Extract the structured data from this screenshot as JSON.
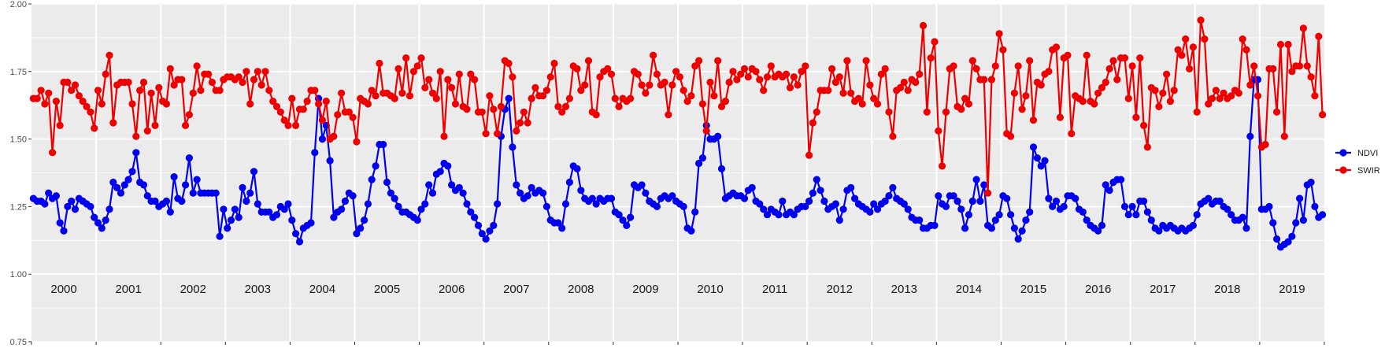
{
  "chart_data": {
    "type": "line",
    "ylim": [
      0.75,
      2.0
    ],
    "yticks": [
      "0.75",
      "1.00",
      "1.25",
      "1.50",
      "1.75",
      "2.00"
    ],
    "grid": true,
    "legend_position": "right",
    "colors": {
      "NDVI": "#0000ee",
      "SWIR": "#ee0000",
      "panel": "#ebebeb",
      "grid": "#ffffff"
    },
    "years": [
      "2000",
      "2001",
      "2002",
      "2003",
      "2004",
      "2005",
      "2006",
      "2007",
      "2008",
      "2009",
      "2010",
      "2011",
      "2012",
      "2013",
      "2014",
      "2015",
      "2016",
      "2017",
      "2018",
      "2019"
    ],
    "series": [
      {
        "name": "NDVI",
        "color": "#0000ee",
        "values": [
          [
            1.28,
            1.27,
            1.27,
            1.26,
            1.3,
            1.28,
            1.29,
            1.19,
            1.16,
            1.25,
            1.27,
            1.24,
            1.28,
            1.27,
            1.26,
            1.25,
            1.21
          ],
          [
            1.19,
            1.17,
            1.2,
            1.24,
            1.34,
            1.32,
            1.3,
            1.33,
            1.35,
            1.38,
            1.45,
            1.34,
            1.33,
            1.29,
            1.27,
            1.27,
            1.25
          ],
          [
            1.26,
            1.27,
            1.23,
            1.36,
            1.28,
            1.27,
            1.33,
            1.43,
            1.3,
            1.35,
            1.3,
            1.3,
            1.3,
            1.3,
            1.3,
            1.14,
            1.24
          ],
          [
            1.17,
            1.2,
            1.24,
            1.21,
            1.32,
            1.27,
            1.3,
            1.38,
            1.26,
            1.23,
            1.23,
            1.23,
            1.21,
            1.22,
            1.25,
            1.24,
            1.26
          ],
          [
            1.2,
            1.15,
            1.12,
            1.17,
            1.18,
            1.19,
            1.45,
            1.65,
            1.5,
            1.55,
            1.42,
            1.21,
            1.23,
            1.24,
            1.27,
            1.3,
            1.29
          ],
          [
            1.15,
            1.17,
            1.2,
            1.26,
            1.35,
            1.4,
            1.48,
            1.48,
            1.34,
            1.3,
            1.28,
            1.25,
            1.23,
            1.23,
            1.22,
            1.21,
            1.2
          ],
          [
            1.24,
            1.26,
            1.33,
            1.3,
            1.37,
            1.38,
            1.41,
            1.4,
            1.33,
            1.31,
            1.32,
            1.3,
            1.26,
            1.23,
            1.21,
            1.18,
            1.15
          ],
          [
            1.13,
            1.16,
            1.18,
            1.26,
            1.51,
            1.61,
            1.65,
            1.47,
            1.33,
            1.3,
            1.28,
            1.29,
            1.32,
            1.3,
            1.31,
            1.3,
            1.25
          ],
          [
            1.2,
            1.19,
            1.19,
            1.17,
            1.26,
            1.34,
            1.4,
            1.39,
            1.31,
            1.28,
            1.27,
            1.28,
            1.26,
            1.28,
            1.27,
            1.28,
            1.28
          ],
          [
            1.23,
            1.22,
            1.2,
            1.18,
            1.21,
            1.33,
            1.32,
            1.33,
            1.3,
            1.27,
            1.26,
            1.25,
            1.28,
            1.29,
            1.28,
            1.29,
            1.27
          ],
          [
            1.26,
            1.25,
            1.17,
            1.16,
            1.23,
            1.41,
            1.43,
            1.55,
            1.5,
            1.5,
            1.51,
            1.39,
            1.28,
            1.29,
            1.3,
            1.29,
            1.29
          ],
          [
            1.28,
            1.31,
            1.32,
            1.27,
            1.26,
            1.24,
            1.22,
            1.24,
            1.23,
            1.22,
            1.27,
            1.22,
            1.23,
            1.22,
            1.24,
            1.25,
            1.25
          ],
          [
            1.27,
            1.3,
            1.35,
            1.31,
            1.27,
            1.24,
            1.25,
            1.26,
            1.2,
            1.24,
            1.31,
            1.32,
            1.28,
            1.26,
            1.25,
            1.24,
            1.23
          ],
          [
            1.26,
            1.24,
            1.26,
            1.27,
            1.29,
            1.32,
            1.28,
            1.27,
            1.26,
            1.24,
            1.21,
            1.2,
            1.2,
            1.17,
            1.17,
            1.18,
            1.18
          ],
          [
            1.29,
            1.26,
            1.25,
            1.29,
            1.29,
            1.27,
            1.24,
            1.17,
            1.22,
            1.27,
            1.35,
            1.27,
            1.33,
            1.18,
            1.17,
            1.2,
            1.22
          ],
          [
            1.29,
            1.28,
            1.22,
            1.17,
            1.13,
            1.16,
            1.2,
            1.23,
            1.47,
            1.43,
            1.4,
            1.42,
            1.28,
            1.25,
            1.27,
            1.24,
            1.25
          ],
          [
            1.29,
            1.29,
            1.28,
            1.24,
            1.23,
            1.2,
            1.18,
            1.17,
            1.16,
            1.18,
            1.33,
            1.31,
            1.34,
            1.35,
            1.35,
            1.25,
            1.22
          ],
          [
            1.25,
            1.22,
            1.27,
            1.27,
            1.23,
            1.2,
            1.17,
            1.16,
            1.18,
            1.17,
            1.18,
            1.17,
            1.16,
            1.17,
            1.16,
            1.17,
            1.18
          ],
          [
            1.22,
            1.26,
            1.27,
            1.28,
            1.26,
            1.27,
            1.27,
            1.25,
            1.24,
            1.22,
            1.2,
            1.2,
            1.21,
            1.17,
            1.51,
            1.72,
            1.72
          ],
          [
            1.24,
            1.24,
            1.25,
            1.19,
            1.13,
            1.1,
            1.11,
            1.12,
            1.14,
            1.19,
            1.28,
            1.2,
            1.33,
            1.34,
            1.25,
            1.21,
            1.22
          ]
        ]
      },
      {
        "name": "SWIR",
        "color": "#ee0000",
        "values": [
          [
            1.65,
            1.65,
            1.68,
            1.63,
            1.67,
            1.45,
            1.64,
            1.55,
            1.71,
            1.71,
            1.68,
            1.7,
            1.66,
            1.64,
            1.62,
            1.6,
            1.54
          ],
          [
            1.68,
            1.63,
            1.74,
            1.81,
            1.56,
            1.7,
            1.71,
            1.71,
            1.71,
            1.63,
            1.51,
            1.68,
            1.71,
            1.53,
            1.67,
            1.55,
            1.69
          ],
          [
            1.64,
            1.63,
            1.76,
            1.7,
            1.72,
            1.72,
            1.55,
            1.59,
            1.67,
            1.77,
            1.68,
            1.74,
            1.74,
            1.71,
            1.68,
            1.68,
            1.72
          ],
          [
            1.73,
            1.73,
            1.72,
            1.73,
            1.71,
            1.75,
            1.63,
            1.72,
            1.75,
            1.7,
            1.75,
            1.68,
            1.64,
            1.62,
            1.6,
            1.57,
            1.55
          ],
          [
            1.65,
            1.55,
            1.61,
            1.61,
            1.64,
            1.68,
            1.68,
            1.63,
            1.57,
            1.64,
            1.5,
            1.51,
            1.59,
            1.67,
            1.6,
            1.6,
            1.58
          ],
          [
            1.49,
            1.65,
            1.64,
            1.63,
            1.68,
            1.66,
            1.78,
            1.67,
            1.67,
            1.66,
            1.65,
            1.76,
            1.67,
            1.8,
            1.66,
            1.75,
            1.77
          ],
          [
            1.8,
            1.69,
            1.72,
            1.67,
            1.65,
            1.75,
            1.51,
            1.72,
            1.69,
            1.63,
            1.74,
            1.62,
            1.61,
            1.74,
            1.72,
            1.6,
            1.6
          ],
          [
            1.52,
            1.66,
            1.61,
            1.52,
            1.62,
            1.79,
            1.78,
            1.73,
            1.53,
            1.56,
            1.6,
            1.56,
            1.65,
            1.69,
            1.66,
            1.66,
            1.68
          ],
          [
            1.73,
            1.78,
            1.62,
            1.6,
            1.62,
            1.65,
            1.77,
            1.76,
            1.68,
            1.7,
            1.79,
            1.6,
            1.59,
            1.73,
            1.75,
            1.76,
            1.74
          ],
          [
            1.65,
            1.62,
            1.65,
            1.64,
            1.65,
            1.75,
            1.74,
            1.7,
            1.67,
            1.7,
            1.81,
            1.74,
            1.7,
            1.71,
            1.59,
            1.7,
            1.75
          ],
          [
            1.73,
            1.68,
            1.64,
            1.66,
            1.77,
            1.79,
            1.63,
            1.53,
            1.71,
            1.66,
            1.79,
            1.62,
            1.64,
            1.71,
            1.75,
            1.72,
            1.74
          ],
          [
            1.76,
            1.73,
            1.76,
            1.75,
            1.72,
            1.68,
            1.73,
            1.77,
            1.73,
            1.74,
            1.73,
            1.74,
            1.69,
            1.73,
            1.7,
            1.75,
            1.77
          ],
          [
            1.44,
            1.56,
            1.6,
            1.68,
            1.68,
            1.68,
            1.76,
            1.71,
            1.73,
            1.67,
            1.79,
            1.67,
            1.64,
            1.65,
            1.63,
            1.79,
            1.7
          ],
          [
            1.65,
            1.63,
            1.74,
            1.76,
            1.6,
            1.51,
            1.68,
            1.69,
            1.71,
            1.68,
            1.72,
            1.71,
            1.74,
            1.92,
            1.6,
            1.8,
            1.86
          ],
          [
            1.53,
            1.4,
            1.6,
            1.76,
            1.77,
            1.62,
            1.61,
            1.65,
            1.63,
            1.79,
            1.76,
            1.72,
            1.72,
            1.3,
            1.72,
            1.77,
            1.89
          ],
          [
            1.83,
            1.52,
            1.51,
            1.67,
            1.77,
            1.61,
            1.66,
            1.79,
            1.57,
            1.71,
            1.7,
            1.74,
            1.75,
            1.83,
            1.84,
            1.58,
            1.8
          ],
          [
            1.81,
            1.52,
            1.66,
            1.65,
            1.64,
            1.81,
            1.64,
            1.63,
            1.67,
            1.69,
            1.71,
            1.76,
            1.79,
            1.72,
            1.8,
            1.8,
            1.65
          ],
          [
            1.77,
            1.58,
            1.8,
            1.55,
            1.47,
            1.69,
            1.68,
            1.62,
            1.67,
            1.74,
            1.64,
            1.68,
            1.83,
            1.81,
            1.87,
            1.76,
            1.84
          ],
          [
            1.6,
            1.94,
            1.87,
            1.63,
            1.65,
            1.68,
            1.65,
            1.67,
            1.65,
            1.66,
            1.68,
            1.67,
            1.87,
            1.83,
            1.7,
            1.77,
            1.66
          ],
          [
            1.47,
            1.48,
            1.76,
            1.76,
            1.6,
            1.85,
            1.51,
            1.85,
            1.75,
            1.77,
            1.77,
            1.91,
            1.77,
            1.73,
            1.66,
            1.88,
            1.59
          ]
        ]
      }
    ]
  }
}
